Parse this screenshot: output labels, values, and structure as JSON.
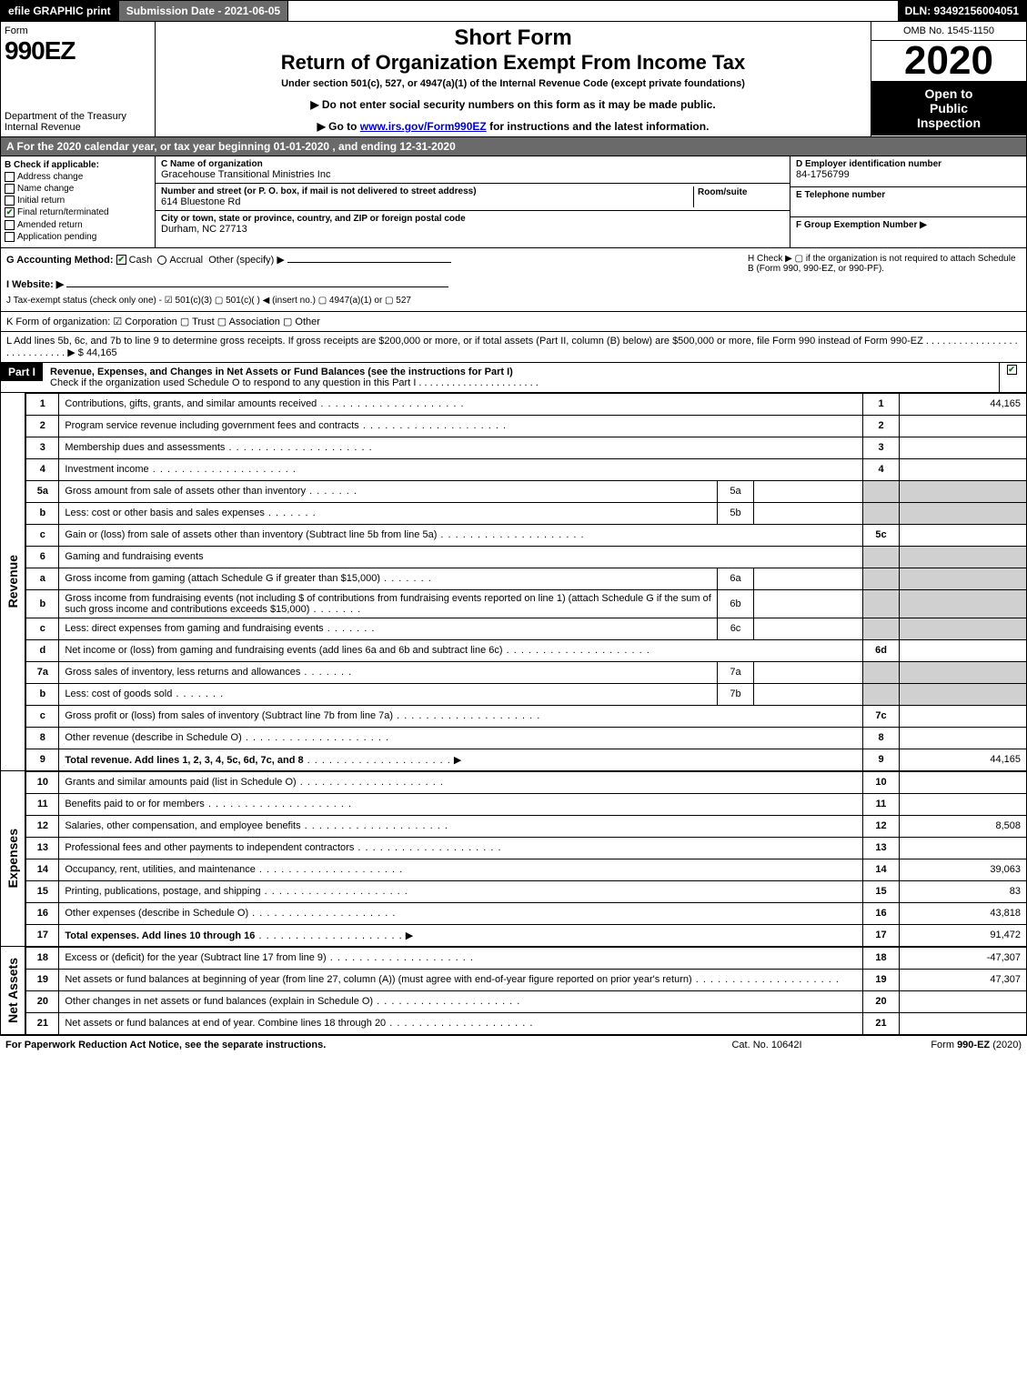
{
  "topbar": {
    "efile": "efile GRAPHIC print",
    "submission": "Submission Date - 2021-06-05",
    "dln": "DLN: 93492156004051"
  },
  "header": {
    "form_label": "Form",
    "form_num": "990EZ",
    "dept": "Department of the Treasury\nInternal Revenue",
    "short_form": "Short Form",
    "return_title": "Return of Organization Exempt From Income Tax",
    "subtitle": "Under section 501(c), 527, or 4947(a)(1) of the Internal Revenue Code (except private foundations)",
    "notice": "▶ Do not enter social security numbers on this form as it may be made public.",
    "go_to_prefix": "▶ Go to ",
    "go_to_link": "www.irs.gov/Form990EZ",
    "go_to_suffix": " for instructions and the latest information.",
    "omb": "OMB No. 1545-1150",
    "year": "2020",
    "inspection_l1": "Open to",
    "inspection_l2": "Public",
    "inspection_l3": "Inspection"
  },
  "section_a": "A  For the 2020 calendar year, or tax year beginning 01-01-2020 , and ending 12-31-2020",
  "box_b": {
    "label": "B  Check if applicable:",
    "items": [
      {
        "label": "Address change",
        "checked": false
      },
      {
        "label": "Name change",
        "checked": false
      },
      {
        "label": "Initial return",
        "checked": false
      },
      {
        "label": "Final return/terminated",
        "checked": true
      },
      {
        "label": "Amended return",
        "checked": false
      },
      {
        "label": "Application pending",
        "checked": false
      }
    ]
  },
  "box_c": {
    "name_label": "C Name of organization",
    "name": "Gracehouse Transitional Ministries Inc",
    "addr_label": "Number and street (or P. O. box, if mail is not delivered to street address)",
    "room_label": "Room/suite",
    "addr": "614 Bluestone Rd",
    "city_label": "City or town, state or province, country, and ZIP or foreign postal code",
    "city": "Durham, NC  27713"
  },
  "box_d": {
    "label": "D Employer identification number",
    "value": "84-1756799"
  },
  "box_e": {
    "label": "E Telephone number",
    "value": ""
  },
  "box_f": {
    "label": "F Group Exemption Number   ▶",
    "value": ""
  },
  "line_g": {
    "label": "G Accounting Method:",
    "cash": "Cash",
    "accrual": "Accrual",
    "other": "Other (specify) ▶"
  },
  "line_h": "H  Check ▶  ▢  if the organization is not required to attach Schedule B (Form 990, 990-EZ, or 990-PF).",
  "line_i": "I Website: ▶",
  "line_j": "J Tax-exempt status (check only one) -  ☑ 501(c)(3)  ▢ 501(c)(  ) ◀ (insert no.)  ▢ 4947(a)(1) or  ▢ 527",
  "line_k": "K Form of organization:   ☑ Corporation   ▢ Trust   ▢ Association   ▢ Other",
  "line_l": {
    "text": "L Add lines 5b, 6c, and 7b to line 9 to determine gross receipts. If gross receipts are $200,000 or more, or if total assets (Part II, column (B) below) are $500,000 or more, file Form 990 instead of Form 990-EZ  .  .  .  .  .  .  .  .  .  .  .  .  .  .  .  .  .  .  .  .  .  .  .  .  .  .  .  .  ▶",
    "amount": "$ 44,165"
  },
  "part1": {
    "header": "Part I",
    "title": "Revenue, Expenses, and Changes in Net Assets or Fund Balances (see the instructions for Part I)",
    "checktext": "Check if the organization used Schedule O to respond to any question in this Part I  .  .  .  .  .  .  .  .  .  .  .  .  .  .  .  .  .  .  .  .  .  .",
    "checked": true
  },
  "side_labels": {
    "revenue": "Revenue",
    "expenses": "Expenses",
    "netassets": "Net Assets"
  },
  "rows": [
    {
      "n": "1",
      "desc": "Contributions, gifts, grants, and similar amounts received",
      "idx": "1",
      "val": "44,165"
    },
    {
      "n": "2",
      "desc": "Program service revenue including government fees and contracts",
      "idx": "2",
      "val": ""
    },
    {
      "n": "3",
      "desc": "Membership dues and assessments",
      "idx": "3",
      "val": ""
    },
    {
      "n": "4",
      "desc": "Investment income",
      "idx": "4",
      "val": ""
    },
    {
      "n": "5a",
      "desc": "Gross amount from sale of assets other than inventory",
      "sub": "5a",
      "subval": ""
    },
    {
      "n": "b",
      "desc": "Less: cost or other basis and sales expenses",
      "sub": "5b",
      "subval": ""
    },
    {
      "n": "c",
      "desc": "Gain or (loss) from sale of assets other than inventory (Subtract line 5b from line 5a)",
      "idx": "5c",
      "val": ""
    },
    {
      "n": "6",
      "desc": "Gaming and fundraising events"
    },
    {
      "n": "a",
      "desc": "Gross income from gaming (attach Schedule G if greater than $15,000)",
      "sub": "6a",
      "subval": ""
    },
    {
      "n": "b",
      "desc": "Gross income from fundraising events (not including $                    of contributions from fundraising events reported on line 1) (attach Schedule G if the sum of such gross income and contributions exceeds $15,000)",
      "sub": "6b",
      "subval": ""
    },
    {
      "n": "c",
      "desc": "Less: direct expenses from gaming and fundraising events",
      "sub": "6c",
      "subval": ""
    },
    {
      "n": "d",
      "desc": "Net income or (loss) from gaming and fundraising events (add lines 6a and 6b and subtract line 6c)",
      "idx": "6d",
      "val": ""
    },
    {
      "n": "7a",
      "desc": "Gross sales of inventory, less returns and allowances",
      "sub": "7a",
      "subval": ""
    },
    {
      "n": "b",
      "desc": "Less: cost of goods sold",
      "sub": "7b",
      "subval": ""
    },
    {
      "n": "c",
      "desc": "Gross profit or (loss) from sales of inventory (Subtract line 7b from line 7a)",
      "idx": "7c",
      "val": ""
    },
    {
      "n": "8",
      "desc": "Other revenue (describe in Schedule O)",
      "idx": "8",
      "val": ""
    },
    {
      "n": "9",
      "desc": "Total revenue. Add lines 1, 2, 3, 4, 5c, 6d, 7c, and 8",
      "idx": "9",
      "val": "44,165",
      "bold": true,
      "arrow": true
    }
  ],
  "exp_rows": [
    {
      "n": "10",
      "desc": "Grants and similar amounts paid (list in Schedule O)",
      "idx": "10",
      "val": ""
    },
    {
      "n": "11",
      "desc": "Benefits paid to or for members",
      "idx": "11",
      "val": ""
    },
    {
      "n": "12",
      "desc": "Salaries, other compensation, and employee benefits",
      "idx": "12",
      "val": "8,508"
    },
    {
      "n": "13",
      "desc": "Professional fees and other payments to independent contractors",
      "idx": "13",
      "val": ""
    },
    {
      "n": "14",
      "desc": "Occupancy, rent, utilities, and maintenance",
      "idx": "14",
      "val": "39,063"
    },
    {
      "n": "15",
      "desc": "Printing, publications, postage, and shipping",
      "idx": "15",
      "val": "83"
    },
    {
      "n": "16",
      "desc": "Other expenses (describe in Schedule O)",
      "idx": "16",
      "val": "43,818"
    },
    {
      "n": "17",
      "desc": "Total expenses. Add lines 10 through 16",
      "idx": "17",
      "val": "91,472",
      "bold": true,
      "arrow": true
    }
  ],
  "na_rows": [
    {
      "n": "18",
      "desc": "Excess or (deficit) for the year (Subtract line 17 from line 9)",
      "idx": "18",
      "val": "-47,307"
    },
    {
      "n": "19",
      "desc": "Net assets or fund balances at beginning of year (from line 27, column (A)) (must agree with end-of-year figure reported on prior year's return)",
      "idx": "19",
      "val": "47,307"
    },
    {
      "n": "20",
      "desc": "Other changes in net assets or fund balances (explain in Schedule O)",
      "idx": "20",
      "val": ""
    },
    {
      "n": "21",
      "desc": "Net assets or fund balances at end of year. Combine lines 18 through 20",
      "idx": "21",
      "val": ""
    }
  ],
  "footer": {
    "left": "For Paperwork Reduction Act Notice, see the separate instructions.",
    "mid": "Cat. No. 10642I",
    "right_prefix": "Form ",
    "right_bold": "990-EZ",
    "right_suffix": " (2020)"
  }
}
